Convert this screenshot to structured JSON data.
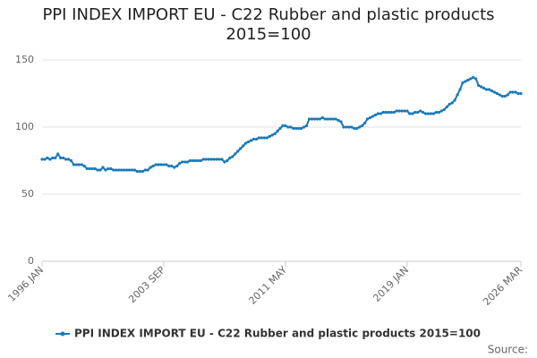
{
  "chart_data": {
    "type": "line",
    "title": "PPI INDEX IMPORT EU - C22 Rubber and plastic products 2015=100",
    "source": "Source:",
    "categories": [
      "1996 JAN",
      null,
      null,
      null,
      null,
      null,
      null,
      null,
      null,
      null,
      null,
      null,
      null,
      null,
      null,
      null,
      null,
      null,
      null,
      null,
      null,
      null,
      null,
      null,
      null,
      null,
      null,
      null,
      null,
      null,
      null,
      null,
      null,
      null,
      null,
      null,
      null,
      null,
      null,
      null,
      null,
      null,
      null,
      null,
      null,
      null,
      "2003 SEP",
      null,
      null,
      null,
      null,
      null,
      null,
      null,
      null,
      null,
      null,
      null,
      null,
      null,
      null,
      null,
      null,
      null,
      null,
      null,
      null,
      null,
      null,
      null,
      null,
      null,
      null,
      null,
      null,
      null,
      null,
      null,
      null,
      null,
      null,
      null,
      null,
      null,
      null,
      null,
      null,
      null,
      null,
      null,
      null,
      null,
      "2011 MAY",
      null,
      null,
      null,
      null,
      null,
      null,
      null,
      null,
      null,
      null,
      null,
      null,
      null,
      null,
      null,
      null,
      null,
      null,
      null,
      null,
      null,
      null,
      null,
      null,
      null,
      null,
      null,
      null,
      null,
      null,
      null,
      null,
      null,
      null,
      null,
      null,
      null,
      null,
      null,
      null,
      null,
      null,
      null,
      null,
      null,
      "2019 JAN",
      null,
      null,
      null,
      null,
      null,
      null,
      null,
      null,
      null,
      null,
      null,
      null,
      null,
      null,
      null,
      null,
      null,
      null,
      null,
      null,
      null,
      null,
      null,
      null,
      null,
      null,
      null,
      null,
      null,
      null,
      null,
      null,
      null,
      null,
      null,
      null,
      null,
      null,
      null,
      null,
      null,
      null,
      "2026 MAR"
    ],
    "series": [
      {
        "name": "PPI INDEX IMPORT EU - C22 Rubber and plastic products 2015=100",
        "color": "#1a7ab8",
        "values": [
          76,
          76,
          77,
          76,
          77,
          77,
          80,
          77,
          77,
          76,
          76,
          75,
          72,
          72,
          72,
          72,
          71,
          69,
          69,
          69,
          69,
          68,
          68,
          70,
          68,
          69,
          69,
          68,
          68,
          68,
          68,
          68,
          68,
          68,
          68,
          68,
          67,
          67,
          67,
          68,
          68,
          70,
          71,
          72,
          72,
          72,
          72,
          72,
          71,
          71,
          70,
          71,
          73,
          74,
          74,
          74,
          75,
          75,
          75,
          75,
          75,
          76,
          76,
          76,
          76,
          76,
          76,
          76,
          76,
          74,
          75,
          77,
          78,
          80,
          82,
          84,
          86,
          88,
          89,
          90,
          91,
          91,
          92,
          92,
          92,
          92,
          93,
          94,
          95,
          97,
          99,
          101,
          101,
          100,
          100,
          99,
          99,
          99,
          99,
          100,
          101,
          106,
          106,
          106,
          106,
          106,
          107,
          106,
          106,
          106,
          106,
          106,
          105,
          104,
          100,
          100,
          100,
          100,
          99,
          99,
          100,
          101,
          103,
          106,
          107,
          108,
          109,
          110,
          110,
          111,
          111,
          111,
          111,
          111,
          112,
          112,
          112,
          112,
          112,
          110,
          110,
          111,
          111,
          112,
          111,
          110,
          110,
          110,
          110,
          111,
          111,
          112,
          113,
          115,
          117,
          118,
          120,
          124,
          128,
          133,
          134,
          135,
          136,
          137,
          136,
          131,
          130,
          129,
          128,
          128,
          127,
          126,
          125,
          124,
          123,
          123,
          124,
          126,
          126,
          126,
          125,
          125
        ]
      }
    ],
    "ylim": [
      0,
      150
    ],
    "yticks": [
      0,
      50,
      100,
      150
    ],
    "grid": true,
    "legend": "bottom"
  }
}
